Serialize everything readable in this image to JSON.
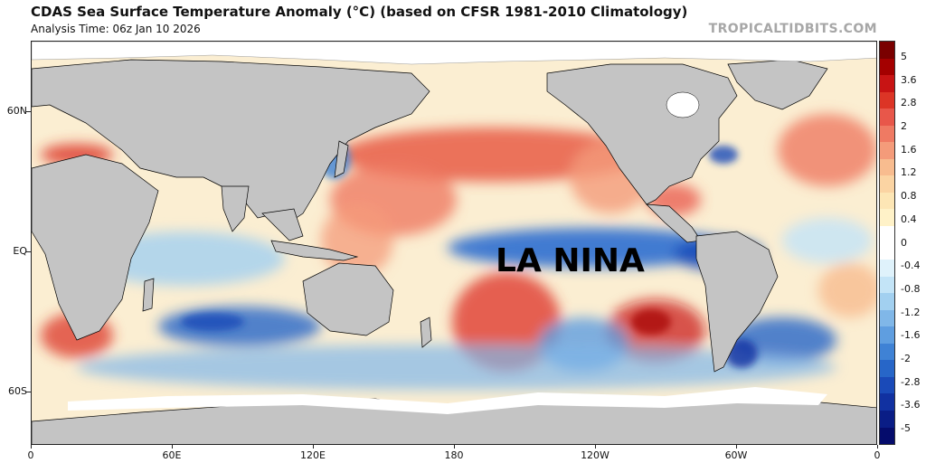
{
  "header": {
    "title": "CDAS Sea Surface Temperature Anomaly (°C) (based on CFSR 1981-2010 Climatology)",
    "subtitle": "Analysis Time: 06z Jan 10 2026",
    "brand": "TROPICALTIDBITS.COM"
  },
  "overlay_text": "LA NINA",
  "axes": {
    "y_ticks": [
      {
        "label": "60N",
        "lat": 60
      },
      {
        "label": "EQ",
        "lat": 0
      },
      {
        "label": "60S",
        "lat": -60
      }
    ],
    "x_ticks": [
      {
        "label": "0",
        "lon": 0
      },
      {
        "label": "60E",
        "lon": 60
      },
      {
        "label": "120E",
        "lon": 120
      },
      {
        "label": "180",
        "lon": 180
      },
      {
        "label": "120W",
        "lon": 240
      },
      {
        "label": "60W",
        "lon": 300
      },
      {
        "label": "0",
        "lon": 360
      }
    ],
    "lat_range": [
      -83,
      90
    ],
    "lon_range": [
      0,
      360
    ]
  },
  "colorbar": {
    "labels": [
      "5",
      "3.6",
      "2.8",
      "2",
      "1.6",
      "1.2",
      "0.8",
      "0.4",
      "0",
      "-0.4",
      "-0.8",
      "-1.2",
      "-1.6",
      "-2",
      "-2.8",
      "-3.6",
      "-5"
    ],
    "colors_top_to_bottom": [
      "#7a0000",
      "#a40000",
      "#c81414",
      "#dc3526",
      "#e8574a",
      "#ef7a63",
      "#f49b7a",
      "#f8bc8f",
      "#fbd4a3",
      "#fde6b5",
      "#fff2c8",
      "#ffffff",
      "#ffffff",
      "#dff2fb",
      "#c3e4f7",
      "#a2d0f0",
      "#80b7e8",
      "#5f9ee0",
      "#3f82d5",
      "#2766c8",
      "#1a4ab8",
      "#1131a1",
      "#0a1d86",
      "#050c6c"
    ]
  },
  "map_colors": {
    "land": "#c4c4c4",
    "ice": "#ffffff",
    "ocean_base": "#fbeed2",
    "coast": "#000000"
  }
}
